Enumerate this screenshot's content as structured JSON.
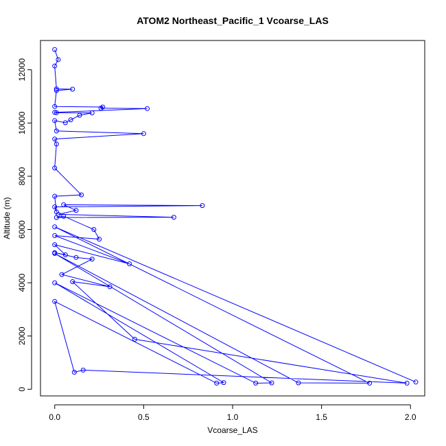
{
  "chart_data": {
    "type": "line",
    "title": "ATOM2 Northeast_Pacific_1 Vcoarse_LAS",
    "xlabel": "Vcoarse_LAS",
    "ylabel": "Altitude (m)",
    "xlim": [
      -0.08,
      2.08
    ],
    "ylim": [
      -250,
      13100
    ],
    "x_ticks": [
      0.0,
      0.5,
      1.0,
      1.5,
      2.0
    ],
    "x_tick_labels": [
      "0.0",
      "0.5",
      "1.0",
      "1.5",
      "2.0"
    ],
    "y_ticks": [
      0,
      2000,
      4000,
      6000,
      8000,
      10000,
      12000
    ],
    "y_tick_labels": [
      "0",
      "2000",
      "4000",
      "6000",
      "8000",
      "10000",
      "12000"
    ],
    "grid": false,
    "legend": "none",
    "colors": {
      "series": "#0000ff",
      "axis": "#000000",
      "background": "#ffffff"
    },
    "series": [
      {
        "x": [
          0.0,
          0.02,
          0.0,
          0.01,
          0.1,
          0.01,
          0.0,
          0.27,
          0.26,
          0.52,
          0.0,
          0.01,
          0.21,
          0.14,
          0.09,
          0.06,
          0.0,
          0.01,
          0.5,
          0.0,
          0.01,
          0.0,
          0.15,
          0.0,
          0.01,
          0.0,
          0.83,
          0.05,
          0.12,
          0.02,
          0.67,
          0.01,
          0.05,
          0.22,
          0.25,
          0.0,
          0.42,
          0.0,
          0.06,
          0.0,
          0.12,
          0.21,
          0.04,
          0.31,
          0.1,
          0.45,
          1.98,
          0.16,
          0.11,
          0.0,
          0.91,
          0.95,
          0.0,
          1.13,
          1.22,
          0.0,
          1.37,
          1.77,
          0.0,
          2.03
        ],
        "y": [
          12760,
          12380,
          12140,
          11280,
          11270,
          11220,
          10620,
          10600,
          10560,
          10540,
          10400,
          10390,
          10380,
          10290,
          10120,
          10010,
          10090,
          9700,
          9600,
          9400,
          9210,
          8310,
          7300,
          7250,
          6660,
          6850,
          6900,
          6930,
          6720,
          6570,
          6460,
          6450,
          6500,
          6000,
          5640,
          5770,
          4710,
          5430,
          5050,
          5130,
          4950,
          4890,
          4310,
          3850,
          4040,
          1880,
          230,
          720,
          640,
          3300,
          230,
          250,
          4000,
          230,
          240,
          5100,
          240,
          230,
          6100,
          270
        ]
      }
    ]
  }
}
